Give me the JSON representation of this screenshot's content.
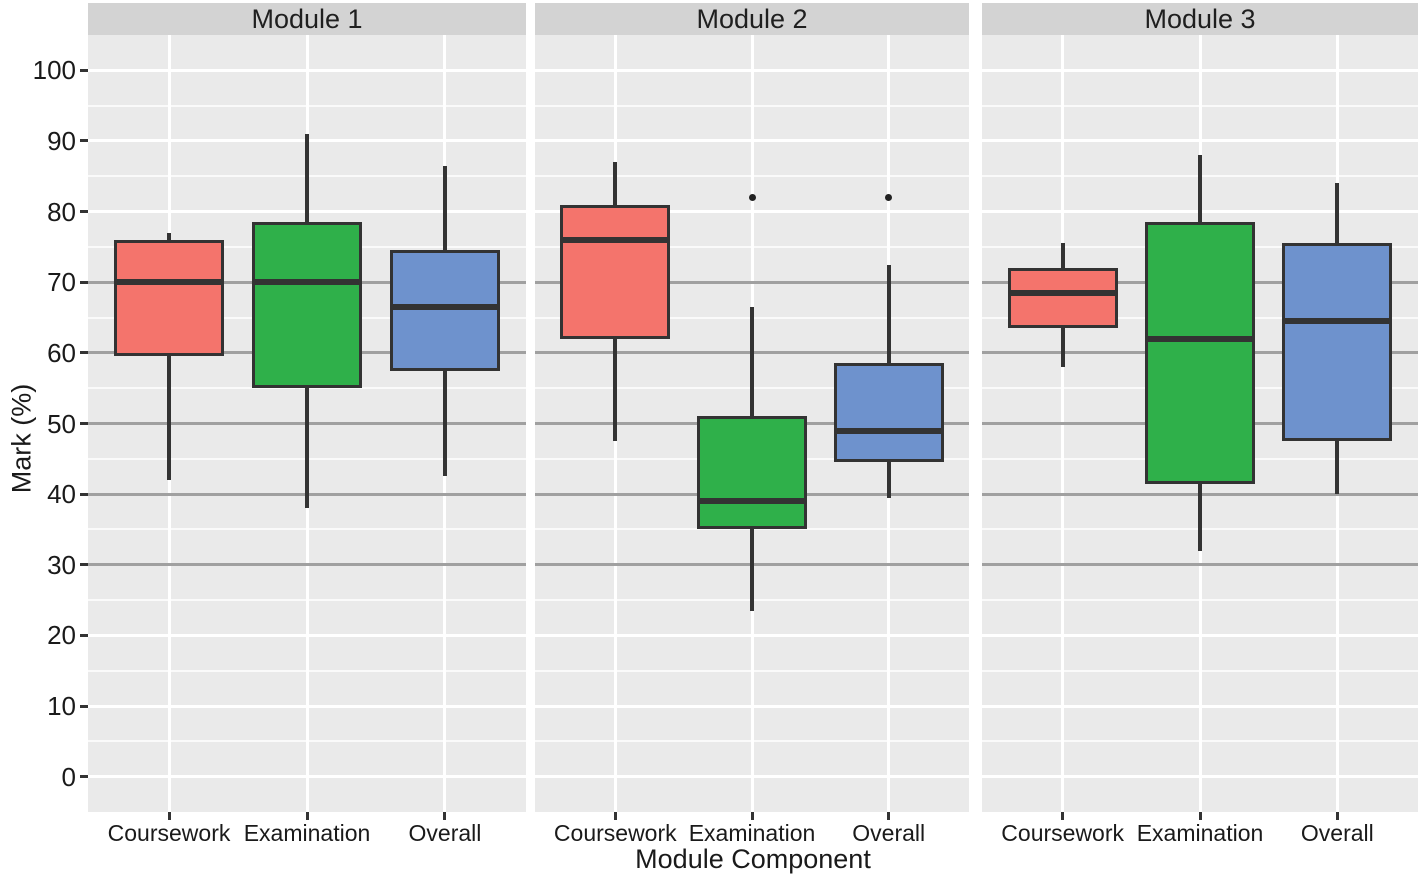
{
  "chart_data": {
    "type": "boxplot",
    "title": "",
    "xlabel": "Module Component",
    "ylabel": "Mark (%)",
    "ylim": [
      -5,
      105
    ],
    "y_ticks": [
      0,
      10,
      20,
      30,
      40,
      50,
      60,
      70,
      80,
      90,
      100
    ],
    "y_minor_ticks": [
      5,
      15,
      25,
      35,
      45,
      55,
      65,
      75,
      85,
      95
    ],
    "reference_lines": [
      30,
      40,
      50,
      60,
      70
    ],
    "grid": "on",
    "legend_position": "none",
    "categories": [
      "Coursework",
      "Examination",
      "Overall"
    ],
    "category_colors": {
      "Coursework": "#F4746C",
      "Examination": "#2FB04A",
      "Overall": "#6E92CD"
    },
    "facets": [
      {
        "label": "Module 1",
        "boxes": [
          {
            "category": "Coursework",
            "min": 42,
            "q1": 59.5,
            "median": 70,
            "q3": 76,
            "max": 77,
            "outliers": []
          },
          {
            "category": "Examination",
            "min": 38,
            "q1": 55,
            "median": 70,
            "q3": 78.5,
            "max": 91,
            "outliers": []
          },
          {
            "category": "Overall",
            "min": 42.5,
            "q1": 57.5,
            "median": 66.5,
            "q3": 74.5,
            "max": 86.5,
            "outliers": []
          }
        ]
      },
      {
        "label": "Module 2",
        "boxes": [
          {
            "category": "Coursework",
            "min": 47.5,
            "q1": 62,
            "median": 76,
            "q3": 81,
            "max": 87,
            "outliers": []
          },
          {
            "category": "Examination",
            "min": 23.5,
            "q1": 35,
            "median": 39,
            "q3": 51,
            "max": 66.5,
            "outliers": [
              82
            ]
          },
          {
            "category": "Overall",
            "min": 39.5,
            "q1": 44.5,
            "median": 49,
            "q3": 58.5,
            "max": 72.5,
            "outliers": [
              82
            ]
          }
        ]
      },
      {
        "label": "Module 3",
        "boxes": [
          {
            "category": "Coursework",
            "min": 58,
            "q1": 63.5,
            "median": 68.5,
            "q3": 72,
            "max": 75.5,
            "outliers": []
          },
          {
            "category": "Examination",
            "min": 32,
            "q1": 41.5,
            "median": 62,
            "q3": 78.5,
            "max": 88,
            "outliers": []
          },
          {
            "category": "Overall",
            "min": 40,
            "q1": 47.5,
            "median": 64.5,
            "q3": 75.5,
            "max": 84,
            "outliers": []
          }
        ]
      }
    ]
  },
  "colors": {
    "panel_background": "#eaeaea",
    "strip_background": "#d3d3d3",
    "grid_major": "#ffffff",
    "grid_minor": "#ffffff",
    "reference_line": "#a0a0a0",
    "box_line": "#333333",
    "text": "#1a1a1a",
    "fill_coursework": "#F4746C",
    "fill_examination": "#2FB04A",
    "fill_overall": "#6E92CD"
  }
}
